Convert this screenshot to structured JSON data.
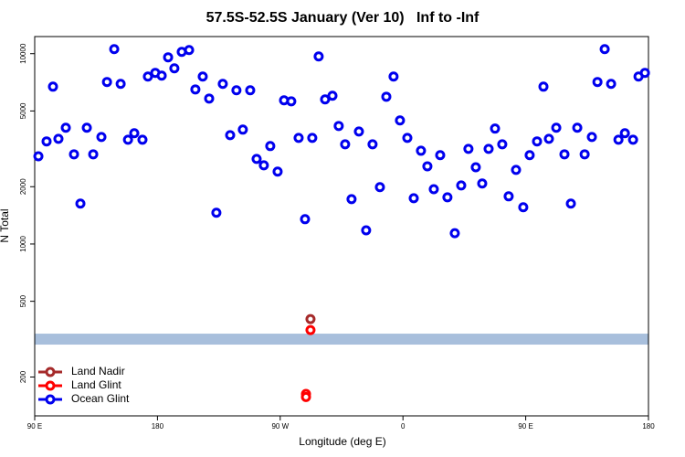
{
  "chart_data": {
    "type": "scatter",
    "title": "57.5S-52.5S January (Ver 10)   Inf to -Inf",
    "x_label": "Longitude (deg E)",
    "y_label": "N Total",
    "ylog": true,
    "xlim": [
      90,
      540
    ],
    "ylim": [
      125,
      12300
    ],
    "xticks": [
      {
        "value": 90,
        "label": "90 E"
      },
      180,
      {
        "value": 270,
        "label": "90 W"
      },
      {
        "value": 360,
        "label": "0"
      },
      {
        "value": 450,
        "label": "90 E"
      },
      {
        "value": 540,
        "label": "180"
      }
    ],
    "yticks": [
      200,
      500,
      1000,
      2000,
      5000,
      10000
    ],
    "legend": "bottom-left",
    "band": {
      "range": [
        296,
        338
      ],
      "color": "#a8bfdc"
    },
    "series": [
      {
        "name": "Land Nadir",
        "color": "#a52a2a",
        "x": [
          292.2
        ],
        "values": [
          403
        ]
      },
      {
        "name": "Land Glint",
        "color": "#ff0000",
        "x": [
          292.2,
          288.9,
          288.9
        ],
        "values": [
          353,
          163,
          157
        ]
      },
      {
        "name": "Ocean Glint",
        "color": "#0000ee",
        "x": [
          92.7,
          98.7,
          103.4,
          107.4,
          112.8,
          118.8,
          123.5,
          128.2,
          132.9,
          138.9,
          143.0,
          148.3,
          153.0,
          158.4,
          163.0,
          169.0,
          173.0,
          178.4,
          183.1,
          187.8,
          192.4,
          197.8,
          203.2,
          207.8,
          213.2,
          217.9,
          223.2,
          227.9,
          233.3,
          237.9,
          242.6,
          248.0,
          252.7,
          258.0,
          262.7,
          268.1,
          272.8,
          278.1,
          283.5,
          288.2,
          293.5,
          298.2,
          302.9,
          308.3,
          312.9,
          317.6,
          322.3,
          327.7,
          333.0,
          337.7,
          343.1,
          347.8,
          353.1,
          357.8,
          363.2,
          367.9,
          373.2,
          377.9,
          382.6,
          387.3,
          392.6,
          398.0,
          402.7,
          408.0,
          413.4,
          418.1,
          422.8,
          427.5,
          432.8,
          437.5,
          442.9,
          448.2,
          452.9,
          458.3,
          463.0,
          467.0,
          472.4,
          478.4,
          483.1,
          487.8,
          493.2,
          498.5,
          502.6,
          507.9,
          512.6,
          518.0,
          522.7,
          528.7,
          532.7,
          537.4
        ],
        "values": [
          2890,
          3460,
          6710,
          3570,
          4080,
          2960,
          1630,
          4080,
          2960,
          3650,
          7100,
          10570,
          6940,
          3530,
          3820,
          3530,
          7580,
          7930,
          7670,
          9570,
          8380,
          10220,
          10450,
          6490,
          7580,
          5810,
          1460,
          6940,
          3730,
          6420,
          3990,
          6420,
          2800,
          2590,
          3270,
          2400,
          5690,
          5620,
          3610,
          1350,
          3610,
          9670,
          5750,
          6010,
          4170,
          3340,
          1720,
          3900,
          1180,
          3340,
          1990,
          5940,
          7580,
          4460,
          3610,
          1740,
          3090,
          2560,
          1940,
          2930,
          1760,
          1140,
          2030,
          3160,
          2530,
          2080,
          3160,
          4040,
          3340,
          1780,
          2450,
          1560,
          2930,
          3460,
          6710,
          3570,
          4080,
          2960,
          1630,
          4080,
          2960,
          3650,
          7100,
          10570,
          6940,
          3530,
          3820,
          3530,
          7580,
          7930
        ]
      }
    ]
  }
}
